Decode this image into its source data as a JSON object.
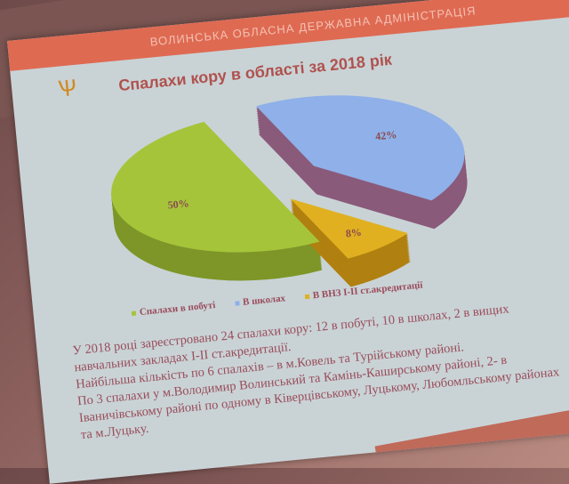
{
  "header": {
    "organization": "ВОЛИНСЬКА ОБЛАСНА ДЕРЖАВНА АДМІНІСТРАЦІЯ",
    "emblem": "trident-icon"
  },
  "colors": {
    "band": "#df6a52",
    "title": "#b0524e",
    "home": "#a6c43a",
    "schools": "#8fb0e8",
    "universities": "#e0b020"
  },
  "chart_data": {
    "type": "pie",
    "title": "Спалахи кору в області за 2018 рік",
    "categories": [
      "Спалахи в побуті",
      "В школах",
      "В ВНЗ І-ІІ ст.акредитації"
    ],
    "values": [
      50,
      42,
      8
    ],
    "labels": [
      "50%",
      "42%",
      "8%"
    ],
    "legend_position": "bottom",
    "style": "3d-exploded"
  },
  "text": {
    "lines": [
      "У 2018 році зареєстровано 24 спалахи кору:  12 в побуті, 10 в школах, 2 в вищих",
      "навчальних закладах І-ІІ ст.акредитації.",
      "Найбільша кількість по 6 спалахів – в м.Ковель та Турійському районі.",
      "По 3 спалахи у м.Володимир Волинський та Камінь-Каширському районі, 2- в",
      "Іваничівському районі по одному в Ківерцівському, Луцькому, Любомльському районах",
      "та м.Луцьку."
    ]
  }
}
